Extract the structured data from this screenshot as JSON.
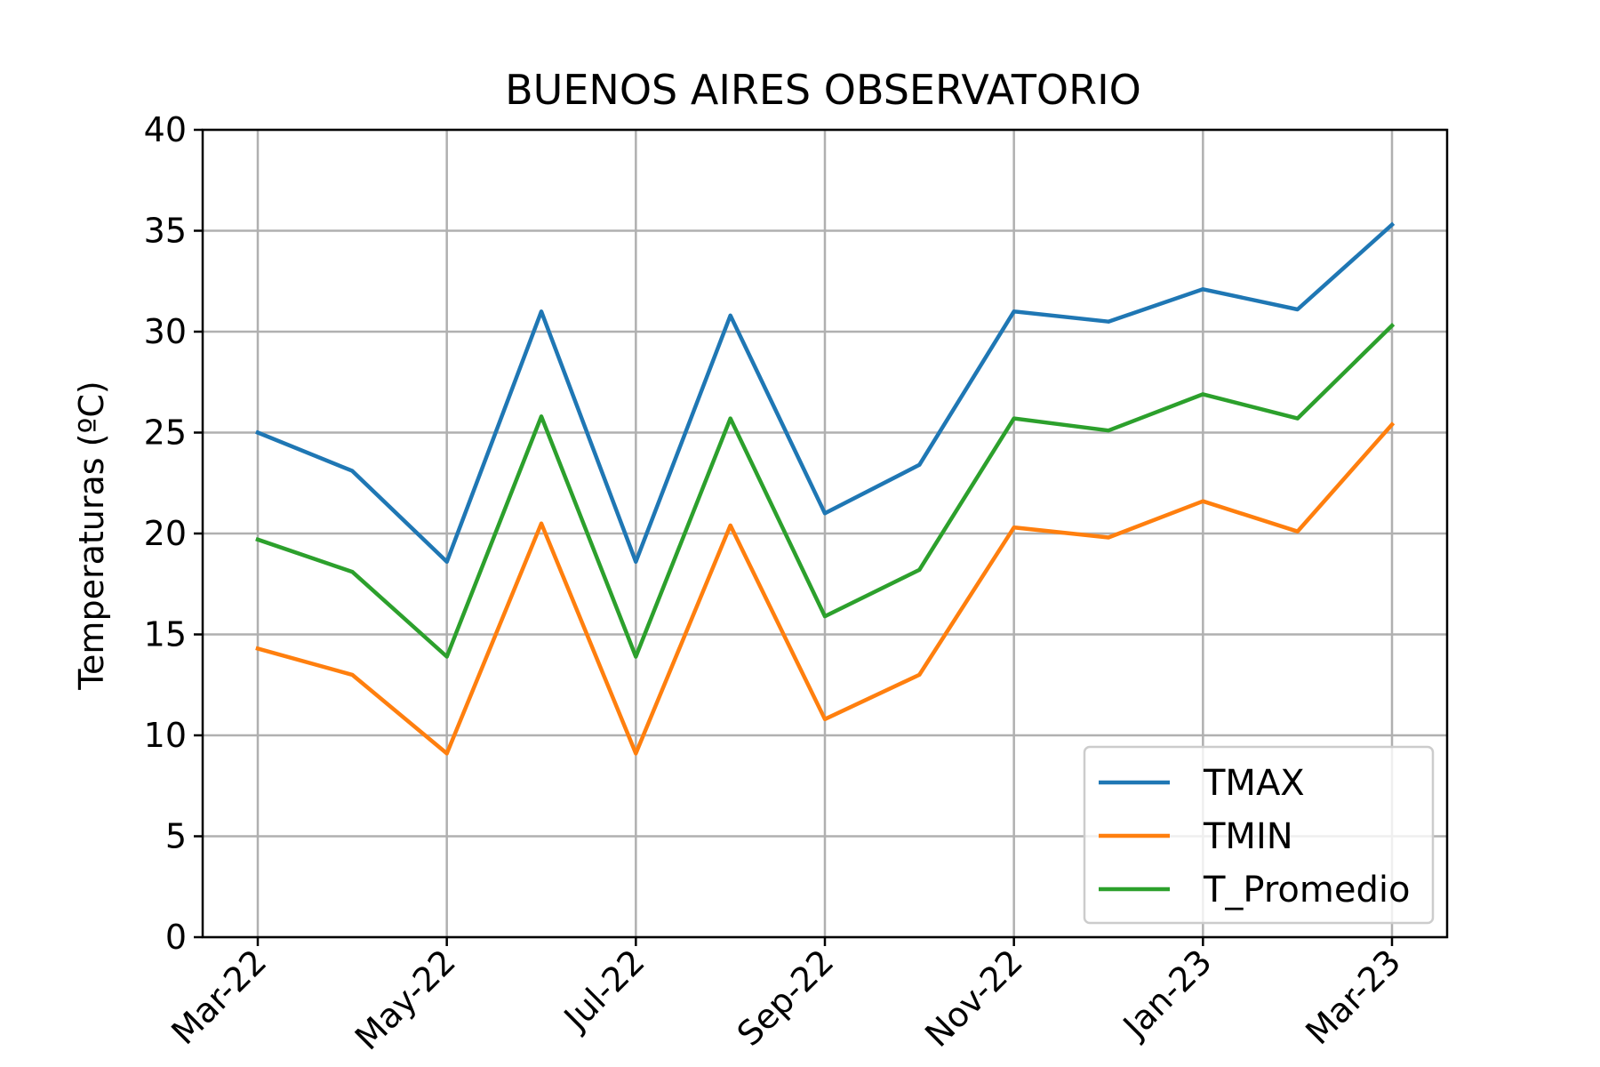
{
  "chart_data": {
    "type": "line",
    "title": "BUENOS AIRES OBSERVATORIO",
    "xlabel": "",
    "ylabel": "Temperaturas (ºC)",
    "ylim": [
      0,
      40
    ],
    "yticks": [
      "0",
      "5",
      "10",
      "15",
      "20",
      "25",
      "30",
      "35",
      "40"
    ],
    "x": [
      "2022-03",
      "2022-04",
      "2022-05",
      "2022-06",
      "2022-07",
      "2022-08",
      "2022-09",
      "2022-10",
      "2022-11",
      "2022-12",
      "2023-01",
      "2023-02",
      "2023-03"
    ],
    "xticks": [
      "Mar-22",
      "May-22",
      "Jul-22",
      "Sep-22",
      "Nov-22",
      "Jan-23",
      "Mar-23"
    ],
    "xtick_rotation": 45,
    "grid": true,
    "legend_position": "lower right",
    "series": [
      {
        "name": "TMAX",
        "color": "#1f77b4",
        "values": [
          25.0,
          23.1,
          18.6,
          31.0,
          18.6,
          30.8,
          21.0,
          23.4,
          31.0,
          30.5,
          32.1,
          31.1,
          35.3
        ]
      },
      {
        "name": "TMIN",
        "color": "#ff7f0e",
        "values": [
          14.3,
          13.0,
          9.1,
          20.5,
          9.1,
          20.4,
          10.8,
          13.0,
          20.3,
          19.8,
          21.6,
          20.1,
          25.4
        ]
      },
      {
        "name": "T_Promedio",
        "color": "#2ca02c",
        "values": [
          19.7,
          18.1,
          13.9,
          25.8,
          13.9,
          25.7,
          15.9,
          18.2,
          25.7,
          25.1,
          26.9,
          25.7,
          30.3
        ]
      }
    ]
  }
}
